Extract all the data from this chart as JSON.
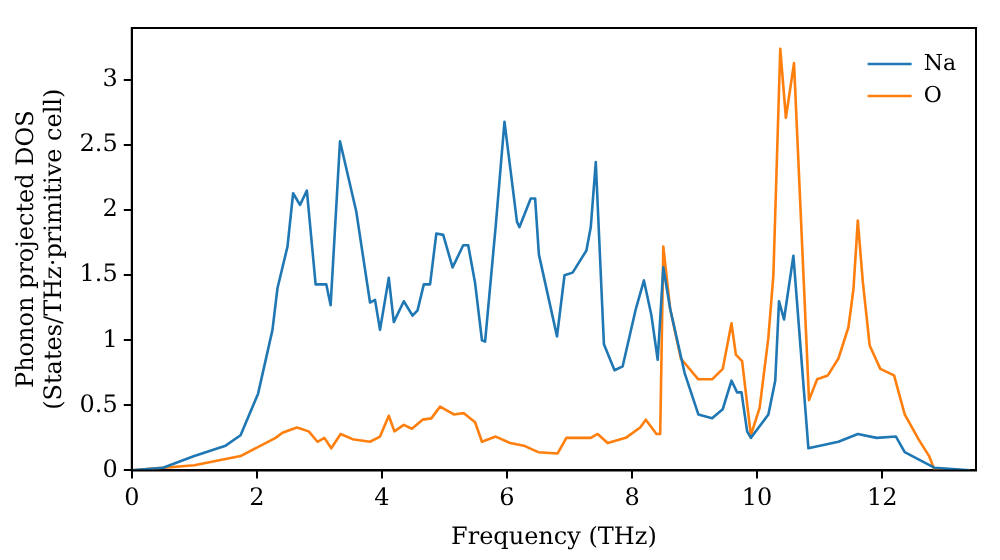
{
  "chart_data": {
    "type": "line",
    "xlabel": "Frequency (THz)",
    "ylabel": "Phonon projected DOS\n(States/THz·primitive cell)",
    "xlim": [
      0,
      13.5
    ],
    "ylim": [
      0,
      3.4
    ],
    "xticks": [
      0,
      2,
      4,
      6,
      8,
      10,
      12
    ],
    "yticks": [
      0,
      0.5,
      1,
      1.5,
      2,
      2.5,
      3
    ],
    "grid": false,
    "legend": "top right",
    "marker": "none",
    "line_style": "solid",
    "series": [
      {
        "name": "Na",
        "color": "#1f77b4",
        "x": [
          0,
          0.5,
          1.0,
          1.5,
          1.74,
          2.02,
          2.25,
          2.33,
          2.49,
          2.58,
          2.69,
          2.8,
          2.94,
          3.11,
          3.18,
          3.33,
          3.59,
          3.81,
          3.89,
          3.97,
          4.11,
          4.19,
          4.35,
          4.49,
          4.57,
          4.67,
          4.77,
          4.87,
          4.98,
          5.13,
          5.3,
          5.38,
          5.49,
          5.6,
          5.65,
          5.82,
          5.96,
          6.16,
          6.2,
          6.38,
          6.45,
          6.51,
          6.8,
          6.92,
          7.05,
          7.27,
          7.34,
          7.42,
          7.55,
          7.72,
          7.85,
          8.06,
          8.19,
          8.31,
          8.41,
          8.5,
          8.61,
          8.84,
          9.06,
          9.28,
          9.45,
          9.59,
          9.68,
          9.75,
          9.84,
          9.9,
          10.18,
          10.29,
          10.35,
          10.43,
          10.58,
          10.82,
          11.3,
          11.61,
          11.91,
          12.22,
          12.36,
          12.84,
          13.4
        ],
        "values": [
          0,
          0.02,
          0.11,
          0.19,
          0.27,
          0.59,
          1.08,
          1.4,
          1.72,
          2.13,
          2.04,
          2.15,
          1.43,
          1.43,
          1.27,
          2.53,
          1.99,
          1.29,
          1.31,
          1.08,
          1.48,
          1.14,
          1.3,
          1.19,
          1.23,
          1.43,
          1.43,
          1.82,
          1.81,
          1.56,
          1.73,
          1.73,
          1.44,
          1.0,
          0.99,
          1.88,
          2.68,
          1.91,
          1.87,
          2.09,
          2.09,
          1.66,
          1.03,
          1.5,
          1.52,
          1.69,
          1.87,
          2.37,
          0.97,
          0.77,
          0.8,
          1.24,
          1.46,
          1.19,
          0.85,
          1.56,
          1.24,
          0.75,
          0.43,
          0.4,
          0.47,
          0.69,
          0.6,
          0.6,
          0.3,
          0.25,
          0.43,
          0.69,
          1.3,
          1.16,
          1.65,
          0.17,
          0.22,
          0.28,
          0.25,
          0.26,
          0.14,
          0.02,
          0
        ]
      },
      {
        "name": "O",
        "color": "#ff7f0e",
        "x": [
          0,
          1.0,
          1.74,
          2.3,
          2.41,
          2.64,
          2.83,
          2.97,
          3.08,
          3.19,
          3.34,
          3.53,
          3.81,
          3.97,
          4.11,
          4.2,
          4.35,
          4.48,
          4.65,
          4.79,
          4.93,
          5.15,
          5.31,
          5.49,
          5.6,
          5.82,
          6.05,
          6.27,
          6.5,
          6.81,
          6.95,
          7.34,
          7.45,
          7.61,
          7.9,
          8.13,
          8.22,
          8.39,
          8.45,
          8.5,
          8.61,
          8.78,
          9.06,
          9.28,
          9.45,
          9.59,
          9.66,
          9.76,
          9.9,
          10.04,
          10.18,
          10.26,
          10.37,
          10.46,
          10.59,
          10.83,
          10.96,
          11.13,
          11.3,
          11.46,
          11.54,
          11.61,
          11.69,
          11.8,
          11.97,
          12.19,
          12.36,
          12.58,
          12.75,
          12.84,
          13.4
        ],
        "values": [
          0,
          0.04,
          0.11,
          0.25,
          0.29,
          0.33,
          0.3,
          0.22,
          0.25,
          0.17,
          0.28,
          0.24,
          0.22,
          0.26,
          0.42,
          0.3,
          0.35,
          0.32,
          0.39,
          0.4,
          0.49,
          0.43,
          0.44,
          0.37,
          0.22,
          0.26,
          0.21,
          0.19,
          0.14,
          0.13,
          0.25,
          0.25,
          0.28,
          0.21,
          0.25,
          0.33,
          0.39,
          0.28,
          0.28,
          1.72,
          1.24,
          0.86,
          0.7,
          0.7,
          0.78,
          1.13,
          0.89,
          0.84,
          0.27,
          0.48,
          1.02,
          1.5,
          3.24,
          2.71,
          3.13,
          0.54,
          0.7,
          0.73,
          0.86,
          1.1,
          1.39,
          1.92,
          1.45,
          0.96,
          0.78,
          0.73,
          0.43,
          0.24,
          0.11,
          0,
          0
        ]
      }
    ]
  }
}
